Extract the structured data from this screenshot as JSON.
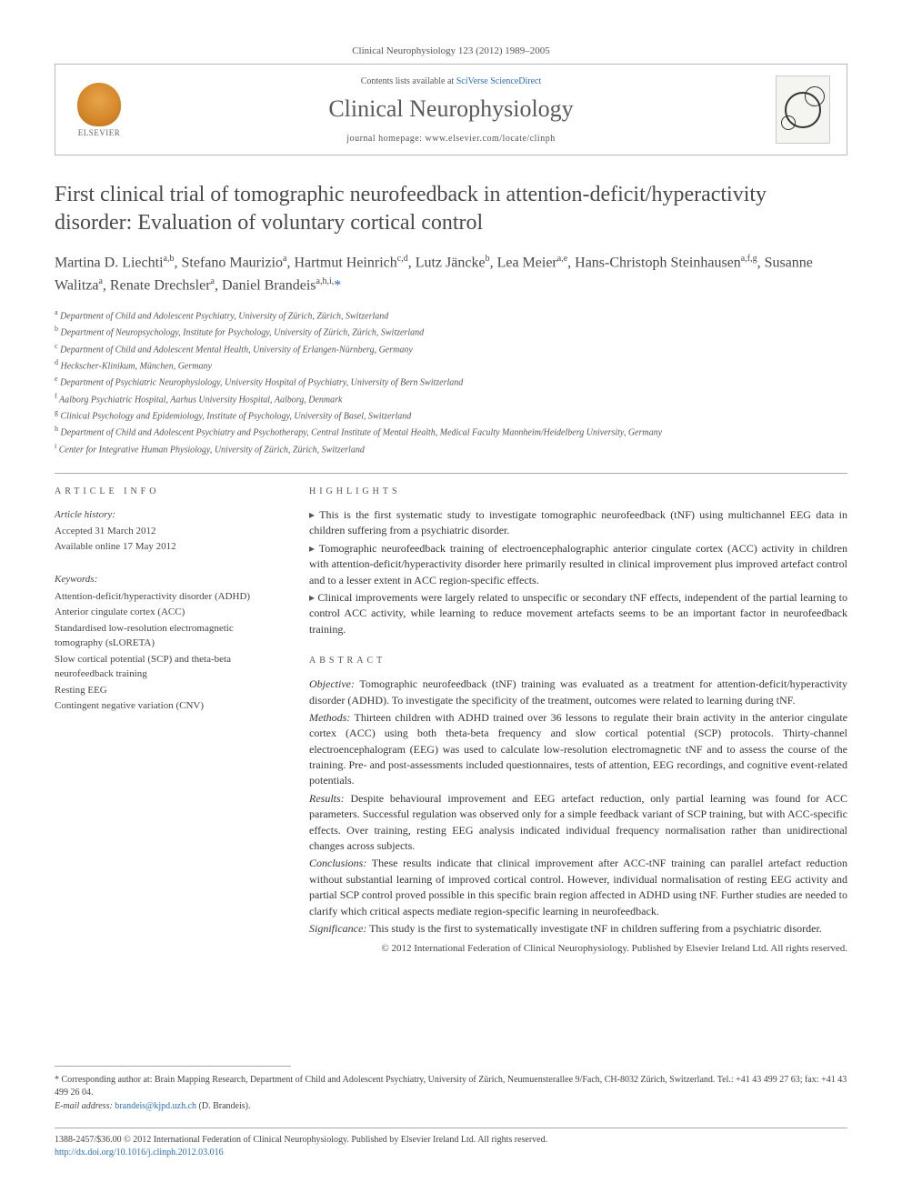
{
  "citation": "Clinical Neurophysiology 123 (2012) 1989–2005",
  "header": {
    "contents_prefix": "Contents lists available at ",
    "contents_link": "SciVerse ScienceDirect",
    "journal": "Clinical Neurophysiology",
    "homepage_prefix": "journal homepage: ",
    "homepage_url": "www.elsevier.com/locate/clinph",
    "publisher": "ELSEVIER"
  },
  "title": "First clinical trial of tomographic neurofeedback in attention-deficit/hyperactivity disorder: Evaluation of voluntary cortical control",
  "authors_html": "Martina D. Liechti<sup>a,b</sup>, Stefano Maurizio<sup>a</sup>, Hartmut Heinrich<sup>c,d</sup>, Lutz Jäncke<sup>b</sup>, Lea Meier<sup>a,e</sup>, Hans-Christoph Steinhausen<sup>a,f,g</sup>, Susanne Walitza<sup>a</sup>, Renate Drechsler<sup>a</sup>, Daniel Brandeis<sup>a,h,i,</sup>",
  "star": "*",
  "affiliations": [
    {
      "sup": "a",
      "text": "Department of Child and Adolescent Psychiatry, University of Zürich, Zürich, Switzerland"
    },
    {
      "sup": "b",
      "text": "Department of Neuropsychology, Institute for Psychology, University of Zürich, Zürich, Switzerland"
    },
    {
      "sup": "c",
      "text": "Department of Child and Adolescent Mental Health, University of Erlangen-Nürnberg, Germany"
    },
    {
      "sup": "d",
      "text": "Heckscher-Klinikum, München, Germany"
    },
    {
      "sup": "e",
      "text": "Department of Psychiatric Neurophysiology, University Hospital of Psychiatry, University of Bern Switzerland"
    },
    {
      "sup": "f",
      "text": "Aalborg Psychiatric Hospital, Aarhus University Hospital, Aalborg, Denmark"
    },
    {
      "sup": "g",
      "text": "Clinical Psychology and Epidemiology, Institute of Psychology, University of Basel, Switzerland"
    },
    {
      "sup": "h",
      "text": "Department of Child and Adolescent Psychiatry and Psychotherapy, Central Institute of Mental Health, Medical Faculty Mannheim/Heidelberg University, Germany"
    },
    {
      "sup": "i",
      "text": "Center for Integrative Human Physiology, University of Zürich, Zürich, Switzerland"
    }
  ],
  "info": {
    "label": "ARTICLE INFO",
    "history_head": "Article history:",
    "accepted": "Accepted 31 March 2012",
    "online": "Available online 17 May 2012",
    "keywords_head": "Keywords:",
    "keywords": [
      "Attention-deficit/hyperactivity disorder (ADHD)",
      "Anterior cingulate cortex (ACC)",
      "Standardised low-resolution electromagnetic tomography (sLORETA)",
      "Slow cortical potential (SCP) and theta-beta neurofeedback training",
      "Resting EEG",
      "Contingent negative variation (CNV)"
    ]
  },
  "highlights": {
    "label": "HIGHLIGHTS",
    "items": [
      "This is the first systematic study to investigate tomographic neurofeedback (tNF) using multichannel EEG data in children suffering from a psychiatric disorder.",
      "Tomographic neurofeedback training of electroencephalographic anterior cingulate cortex (ACC) activity in children with attention-deficit/hyperactivity disorder here primarily resulted in clinical improvement plus improved artefact control and to a lesser extent in ACC region-specific effects.",
      "Clinical improvements were largely related to unspecific or secondary tNF effects, independent of the partial learning to control ACC activity, while learning to reduce movement artefacts seems to be an important factor in neurofeedback training."
    ]
  },
  "abstract": {
    "label": "ABSTRACT",
    "paras": [
      {
        "lead": "Objective:",
        "body": " Tomographic neurofeedback (tNF) training was evaluated as a treatment for attention-deficit/hyperactivity disorder (ADHD). To investigate the specificity of the treatment, outcomes were related to learning during tNF."
      },
      {
        "lead": "Methods:",
        "body": " Thirteen children with ADHD trained over 36 lessons to regulate their brain activity in the anterior cingulate cortex (ACC) using both theta-beta frequency and slow cortical potential (SCP) protocols. Thirty-channel electroencephalogram (EEG) was used to calculate low-resolution electromagnetic tNF and to assess the course of the training. Pre- and post-assessments included questionnaires, tests of attention, EEG recordings, and cognitive event-related potentials."
      },
      {
        "lead": "Results:",
        "body": " Despite behavioural improvement and EEG artefact reduction, only partial learning was found for ACC parameters. Successful regulation was observed only for a simple feedback variant of SCP training, but with ACC-specific effects. Over training, resting EEG analysis indicated individual frequency normalisation rather than unidirectional changes across subjects."
      },
      {
        "lead": "Conclusions:",
        "body": " These results indicate that clinical improvement after ACC-tNF training can parallel artefact reduction without substantial learning of improved cortical control. However, individual normalisation of resting EEG activity and partial SCP control proved possible in this specific brain region affected in ADHD using tNF. Further studies are needed to clarify which critical aspects mediate region-specific learning in neurofeedback."
      },
      {
        "lead": "Significance:",
        "body": " This study is the first to systematically investigate tNF in children suffering from a psychiatric disorder."
      }
    ],
    "copyright": "© 2012 International Federation of Clinical Neurophysiology. Published by Elsevier Ireland Ltd. All rights reserved."
  },
  "corresponding": {
    "star": "* ",
    "text": "Corresponding author at: Brain Mapping Research, Department of Child and Adolescent Psychiatry, University of Zürich, Neumuensterallee 9/Fach, CH-8032 Zürich, Switzerland. Tel.: +41 43 499 27 63; fax: +41 43 499 26 04.",
    "email_label": "E-mail address: ",
    "email": "brandeis@kjpd.uzh.ch",
    "email_who": " (D. Brandeis)."
  },
  "footer": {
    "line1": "1388-2457/$36.00 © 2012 International Federation of Clinical Neurophysiology. Published by Elsevier Ireland Ltd. All rights reserved.",
    "doi": "http://dx.doi.org/10.1016/j.clinph.2012.03.016"
  },
  "colors": {
    "link": "#2a6fb5",
    "text": "#333333",
    "muted": "#555555",
    "rule": "#aaaaaa",
    "elsevier_orange": "#d4862a"
  },
  "typography": {
    "body_pt": 13,
    "title_pt": 24,
    "authors_pt": 16,
    "journal_pt": 26,
    "small_pt": 10
  }
}
